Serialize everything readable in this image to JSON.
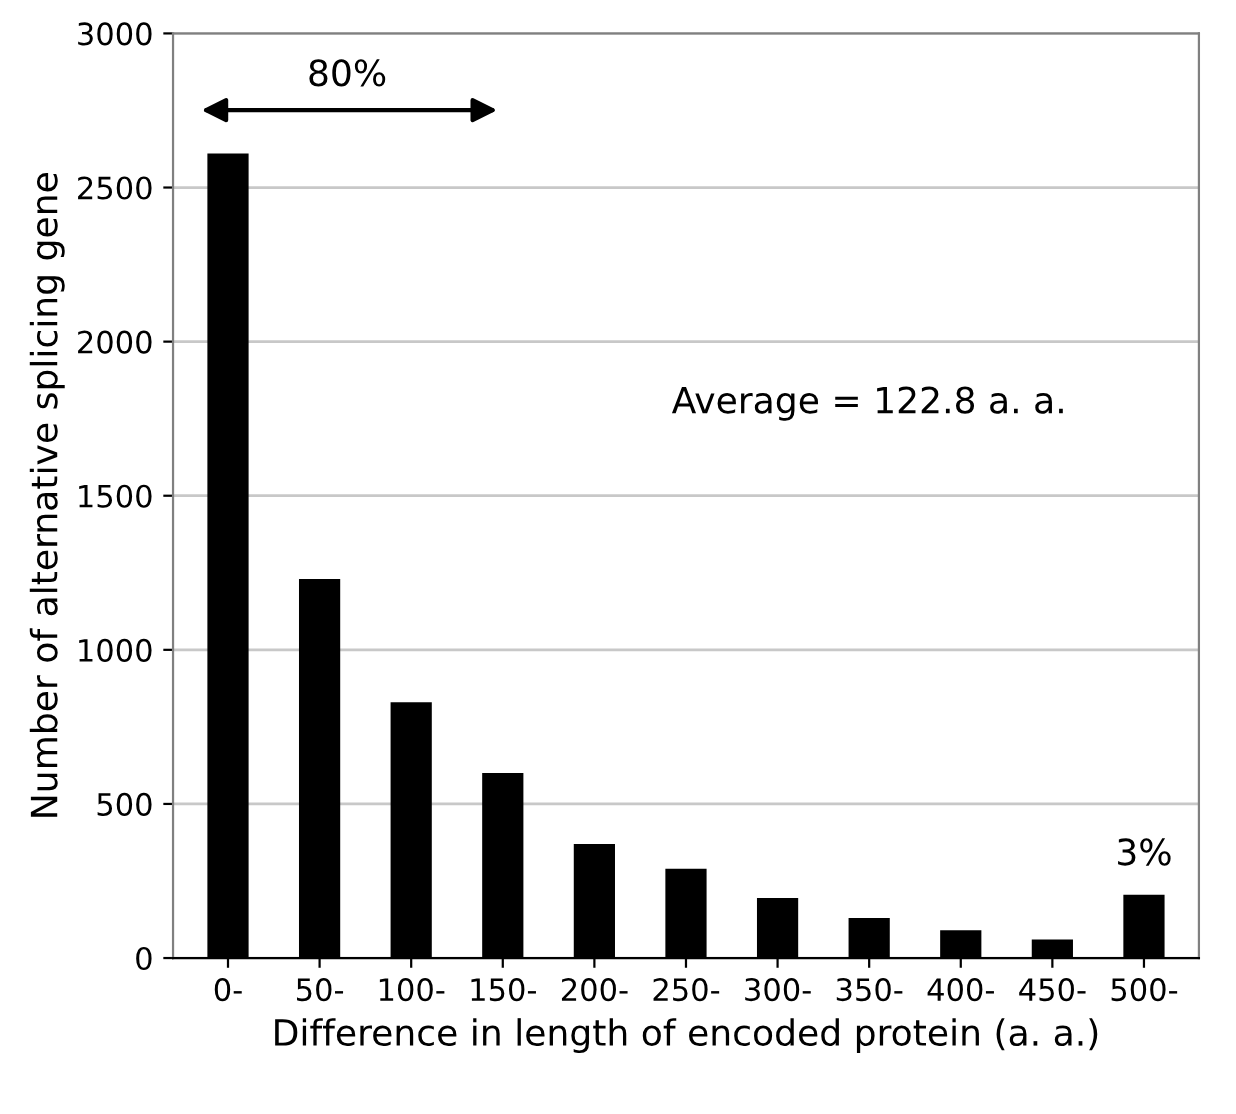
{
  "chart_data": {
    "type": "bar",
    "xlabel": "Difference in length of encoded protein (a. a.)",
    "ylabel": "Number of alternative splicing gene",
    "categories": [
      "0-",
      "50-",
      "100-",
      "150-",
      "200-",
      "250-",
      "300-",
      "350-",
      "400-",
      "450-",
      "500-"
    ],
    "values": [
      2610,
      1230,
      830,
      600,
      370,
      290,
      195,
      130,
      90,
      60,
      205
    ],
    "color": "#000000",
    "ylim": [
      0,
      3000
    ],
    "yticks": [
      0,
      500,
      1000,
      1500,
      2000,
      2500,
      3000
    ],
    "grid": "y",
    "annotations": [
      "80%",
      "Average = 122.8 a. a.",
      {
        "text": "3%",
        "x": "500-",
        "y": 205
      }
    ]
  }
}
